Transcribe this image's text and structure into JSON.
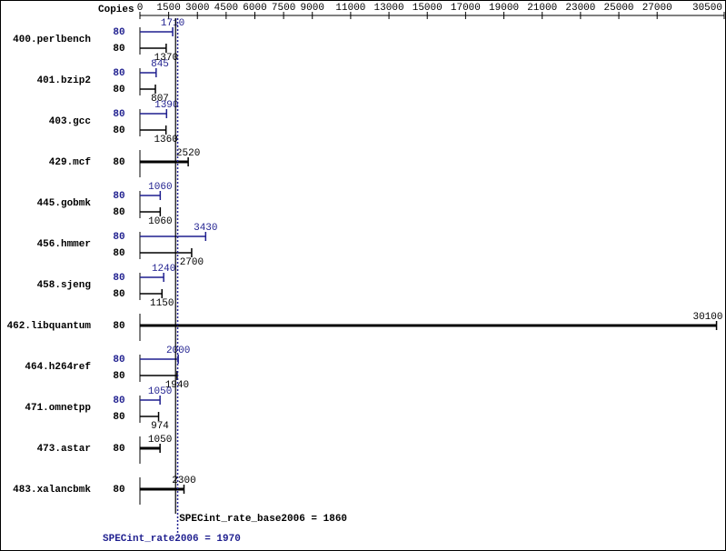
{
  "chart_data": {
    "type": "bar",
    "orientation": "horizontal",
    "copies_label": "Copies",
    "categories": [
      "400.perlbench",
      "401.bzip2",
      "403.gcc",
      "429.mcf",
      "445.gobmk",
      "456.hmmer",
      "458.sjeng",
      "462.libquantum",
      "464.h264ref",
      "471.omnetpp",
      "473.astar",
      "483.xalancbmk"
    ],
    "series": [
      {
        "color": "#1f1f8f",
        "copies": [
          80,
          80,
          80,
          null,
          80,
          80,
          80,
          null,
          80,
          80,
          null,
          null
        ],
        "values": [
          1710,
          845,
          1390,
          null,
          1060,
          3430,
          1240,
          null,
          2000,
          1050,
          null,
          null
        ]
      },
      {
        "color": "#000000",
        "copies": [
          80,
          80,
          80,
          80,
          80,
          80,
          80,
          80,
          80,
          80,
          80,
          80
        ],
        "values": [
          1370,
          807,
          1360,
          2520,
          1060,
          2700,
          1150,
          30100,
          1940,
          974,
          1050,
          2300
        ]
      }
    ],
    "xlim": [
      0,
      30500
    ],
    "xticks": [
      0,
      1500,
      3000,
      4500,
      6000,
      7500,
      9000,
      11000,
      13000,
      15000,
      17000,
      19000,
      21000,
      23000,
      25000,
      27000,
      30500
    ],
    "reference_lines": [
      {
        "label": "SPECint_rate_base2006 = 1860",
        "value": 1860,
        "color": "#000000",
        "style": "solid"
      },
      {
        "label": "SPECint_rate2006 = 1970",
        "value": 1970,
        "color": "#1f1f8f",
        "style": "dotted"
      }
    ]
  }
}
